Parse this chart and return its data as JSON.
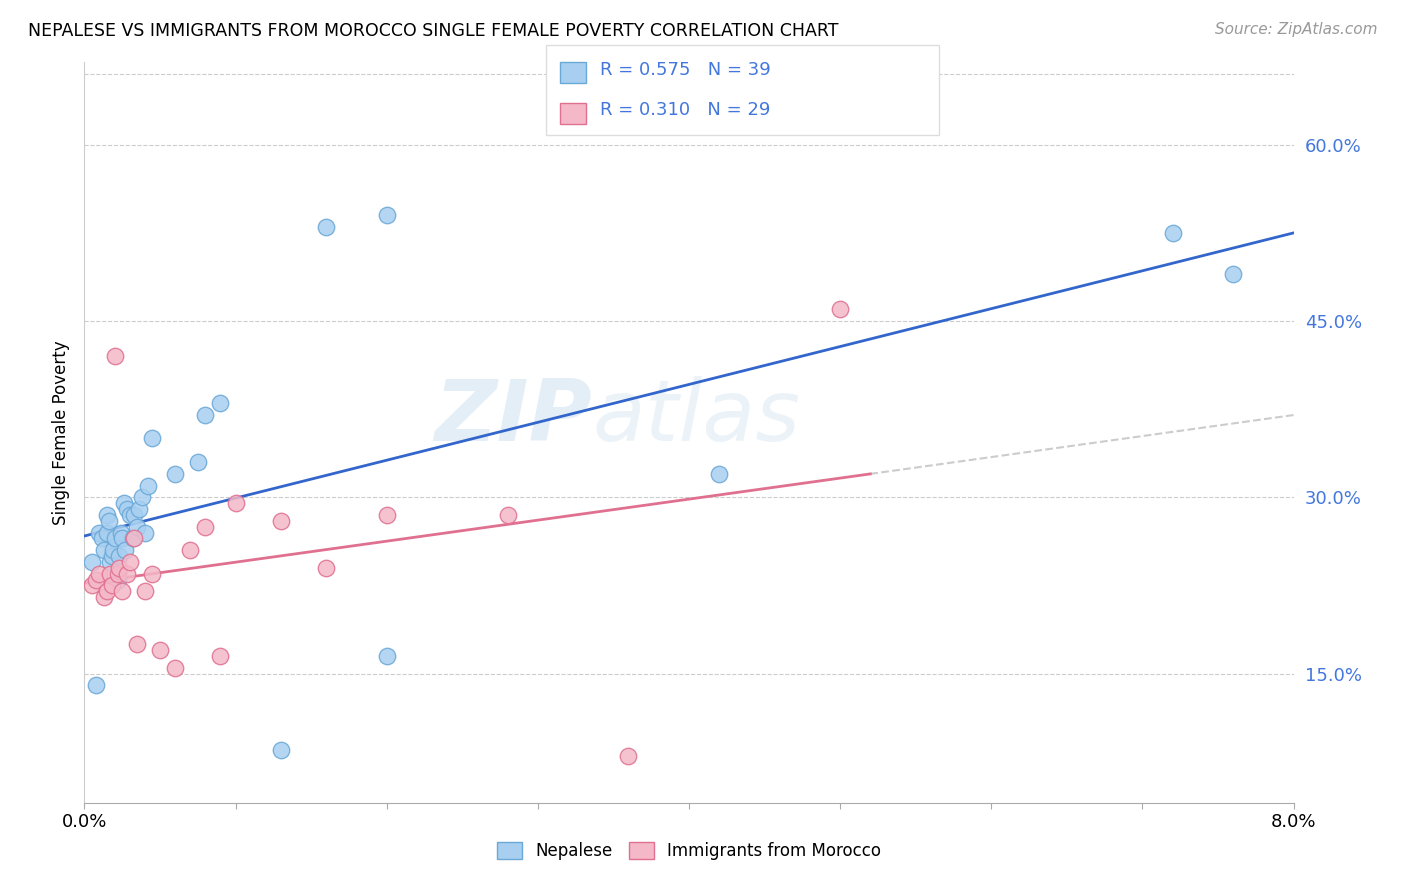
{
  "title": "NEPALESE VS IMMIGRANTS FROM MOROCCO SINGLE FEMALE POVERTY CORRELATION CHART",
  "source": "Source: ZipAtlas.com",
  "ylabel": "Single Female Poverty",
  "ytick_vals": [
    0.15,
    0.3,
    0.45,
    0.6
  ],
  "ytick_labels": [
    "15.0%",
    "30.0%",
    "45.0%",
    "60.0%"
  ],
  "xlim": [
    0.0,
    0.08
  ],
  "ylim": [
    0.04,
    0.67
  ],
  "nepalese_color": "#a8cff0",
  "morocco_color": "#f4b8c8",
  "nepalese_edge": "#6aa8d8",
  "morocco_edge": "#e07090",
  "line1_color": "#3366cc",
  "line2_color": "#e07090",
  "dashed_color": "#cccccc",
  "watermark_color": "#c8dff0",
  "legend_color": "#4477dd",
  "nepalese_x": [
    0.0005,
    0.0008,
    0.001,
    0.0012,
    0.0013,
    0.0015,
    0.0015,
    0.0016,
    0.0017,
    0.0018,
    0.0019,
    0.002,
    0.0022,
    0.0023,
    0.0024,
    0.0025,
    0.0026,
    0.0027,
    0.0028,
    0.003,
    0.0032,
    0.0033,
    0.0035,
    0.0036,
    0.0038,
    0.004,
    0.0042,
    0.0045,
    0.006,
    0.0075,
    0.008,
    0.009,
    0.013,
    0.016,
    0.02,
    0.02,
    0.042,
    0.072,
    0.076
  ],
  "nepalese_y": [
    0.245,
    0.14,
    0.27,
    0.265,
    0.255,
    0.27,
    0.285,
    0.28,
    0.245,
    0.25,
    0.255,
    0.265,
    0.23,
    0.25,
    0.27,
    0.265,
    0.295,
    0.255,
    0.29,
    0.285,
    0.265,
    0.285,
    0.275,
    0.29,
    0.3,
    0.27,
    0.31,
    0.35,
    0.32,
    0.33,
    0.37,
    0.38,
    0.085,
    0.53,
    0.54,
    0.165,
    0.32,
    0.525,
    0.49
  ],
  "morocco_x": [
    0.0005,
    0.0008,
    0.001,
    0.0013,
    0.0015,
    0.0017,
    0.0018,
    0.002,
    0.0022,
    0.0023,
    0.0025,
    0.0028,
    0.003,
    0.0033,
    0.0035,
    0.004,
    0.0045,
    0.005,
    0.006,
    0.007,
    0.008,
    0.009,
    0.01,
    0.013,
    0.016,
    0.02,
    0.028,
    0.036,
    0.05
  ],
  "morocco_y": [
    0.225,
    0.23,
    0.235,
    0.215,
    0.22,
    0.235,
    0.225,
    0.42,
    0.235,
    0.24,
    0.22,
    0.235,
    0.245,
    0.265,
    0.175,
    0.22,
    0.235,
    0.17,
    0.155,
    0.255,
    0.275,
    0.165,
    0.295,
    0.28,
    0.24,
    0.285,
    0.285,
    0.08,
    0.46
  ]
}
